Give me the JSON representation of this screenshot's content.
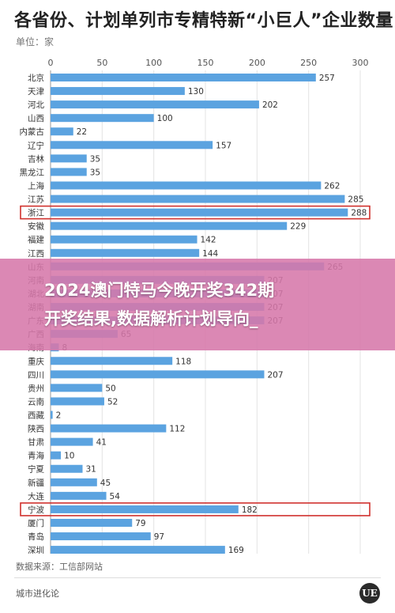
{
  "title": "各省份、计划单列市专精特新“小巨人”企业数量",
  "unit_label": "单位：家",
  "banner": {
    "line1": "2024澳门特马今晚开奖342期",
    "line2": "开奖结果,数据解析计划导向_"
  },
  "source_text": "数据来源：工信部网站",
  "footer_brand": "城市进化论",
  "footer_logo": "UE",
  "colors": {
    "bar": "#5ba3e0",
    "highlight_box": "#d0312d",
    "grid": "#e3e3e3",
    "banner": "#d678aa"
  },
  "chart_data": {
    "type": "bar",
    "orientation": "horizontal",
    "title": "各省份、计划单列市专精特新“小巨人”企业数量",
    "ylabel": "单位：家",
    "xlim": [
      0,
      300
    ],
    "xticks": [
      0,
      50,
      100,
      150,
      200,
      250,
      300
    ],
    "grid": true,
    "categories": [
      "北京",
      "天津",
      "河北",
      "山西",
      "内蒙古",
      "辽宁",
      "吉林",
      "黑龙江",
      "上海",
      "江苏",
      "浙江",
      "安徽",
      "福建",
      "江西",
      "山东",
      "河南",
      "湖北",
      "湖南",
      "广东",
      "广西",
      "海南",
      "重庆",
      "四川",
      "贵州",
      "云南",
      "西藏",
      "陕西",
      "甘肃",
      "青海",
      "宁夏",
      "新疆",
      "大连",
      "宁波",
      "厦门",
      "青岛",
      "深圳"
    ],
    "values": [
      257,
      130,
      202,
      100,
      22,
      157,
      35,
      35,
      262,
      285,
      288,
      229,
      142,
      144,
      265,
      207,
      207,
      207,
      207,
      65,
      8,
      118,
      207,
      50,
      52,
      2,
      112,
      41,
      10,
      31,
      45,
      54,
      182,
      79,
      97,
      169
    ],
    "highlighted": [
      "浙江",
      "宁波"
    ]
  }
}
